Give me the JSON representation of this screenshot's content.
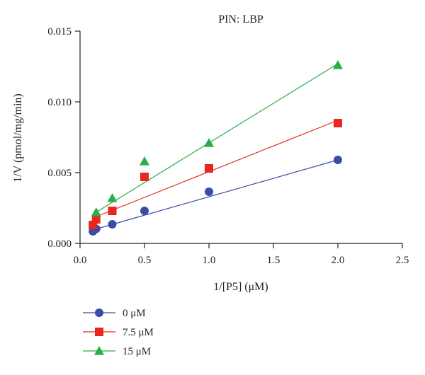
{
  "chart_data": {
    "type": "scatter",
    "title": "PIN: LBP",
    "xlabel": "1/[P5] (μM)",
    "ylabel": "1/V (pmol/mg/min)",
    "xlim": [
      0.0,
      2.5
    ],
    "ylim": [
      0.0,
      0.015
    ],
    "xticks": [
      "0.0",
      "0.5",
      "1.0",
      "1.5",
      "2.0",
      "2.5"
    ],
    "yticks": [
      "0.000",
      "0.005",
      "0.010",
      "0.015"
    ],
    "grid": false,
    "legend_position": "bottom-left",
    "series": [
      {
        "name": "0 μM",
        "marker": "circle",
        "color": "#3a4ca8",
        "x": [
          0.1,
          0.125,
          0.25,
          0.5,
          1.0,
          2.0
        ],
        "y": [
          0.00085,
          0.00103,
          0.00135,
          0.0023,
          0.00365,
          0.0059
        ],
        "fit": {
          "x": [
            0.1,
            2.0
          ],
          "y": [
            0.00095,
            0.0059
          ]
        }
      },
      {
        "name": "7.5 μM",
        "marker": "square",
        "color": "#e8281e",
        "x": [
          0.1,
          0.125,
          0.25,
          0.5,
          1.0,
          2.0
        ],
        "y": [
          0.0013,
          0.0017,
          0.0023,
          0.0047,
          0.0053,
          0.0085
        ],
        "fit": {
          "x": [
            0.1,
            2.0
          ],
          "y": [
            0.0018,
            0.0087
          ]
        }
      },
      {
        "name": "15 μM",
        "marker": "triangle",
        "color": "#2bad48",
        "x": [
          0.125,
          0.25,
          0.5,
          1.0,
          2.0
        ],
        "y": [
          0.0022,
          0.0032,
          0.0058,
          0.0071,
          0.0126
        ],
        "fit": {
          "x": [
            0.125,
            2.0
          ],
          "y": [
            0.0022,
            0.0127
          ]
        }
      }
    ]
  }
}
